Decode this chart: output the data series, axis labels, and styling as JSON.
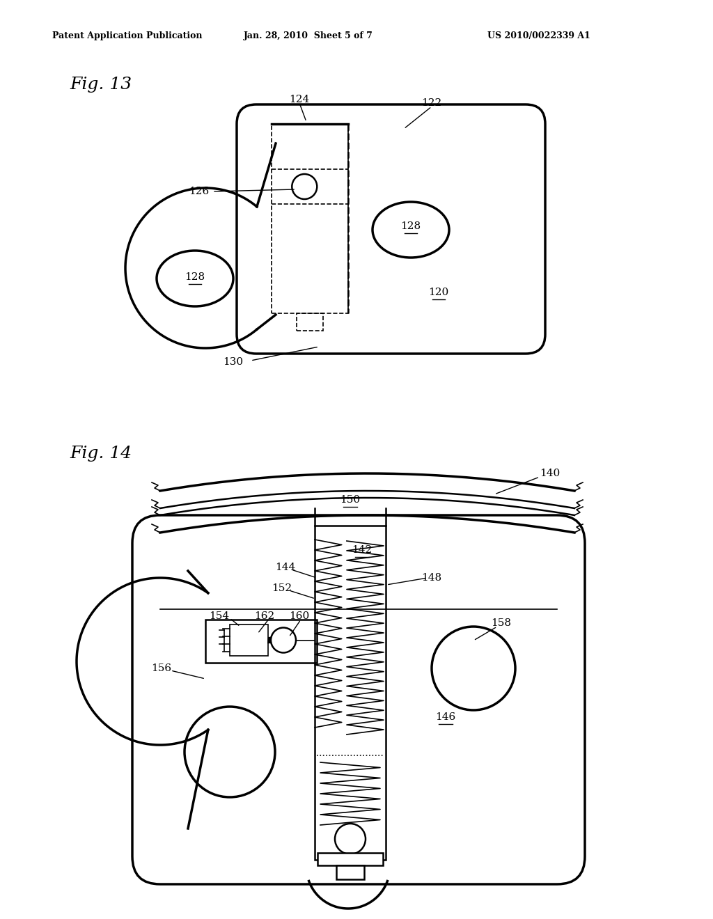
{
  "bg_color": "#ffffff",
  "line_color": "#000000",
  "header_text1": "Patent Application Publication",
  "header_text2": "Jan. 28, 2010  Sheet 5 of 7",
  "header_text3": "US 2010/0022339 A1",
  "fig13_label": "Fig. 13",
  "fig14_label": "Fig. 14"
}
